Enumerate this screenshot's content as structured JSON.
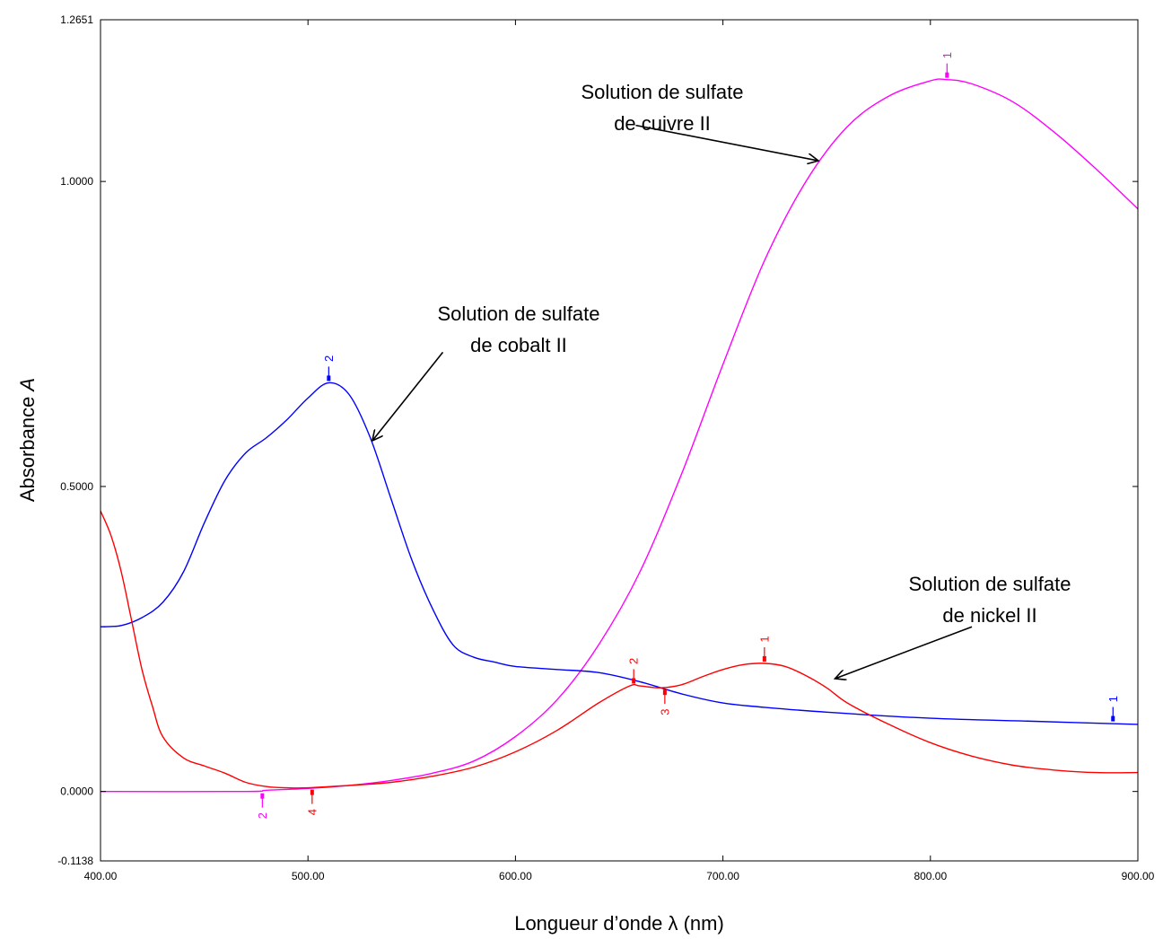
{
  "chart_data": {
    "type": "line",
    "xlabel": "Longueur d’onde λ (nm)",
    "ylabel_prefix": "Absorbance ",
    "ylabel_var": "A",
    "xlim": [
      400,
      900
    ],
    "ylim": [
      -0.1138,
      1.2651
    ],
    "x_ticks": [
      400,
      500,
      600,
      700,
      800,
      900
    ],
    "x_tick_labels": [
      "400.00",
      "500.00",
      "600.00",
      "700.00",
      "800.00",
      "900.00"
    ],
    "y_ticks": [
      -0.1138,
      0,
      0.5,
      1.0,
      1.2651
    ],
    "y_tick_labels": [
      "-0.1138",
      "0.0000",
      "0.5000",
      "1.0000",
      "1.2651"
    ],
    "grid": false,
    "series": [
      {
        "color": "#ff00ff",
        "x": [
          400,
          470,
          480,
          500,
          520,
          540,
          560,
          580,
          600,
          620,
          640,
          660,
          680,
          700,
          720,
          740,
          760,
          780,
          800,
          808,
          820,
          840,
          860,
          880,
          900
        ],
        "y": [
          0.0,
          0.0,
          0.002,
          0.005,
          0.01,
          0.018,
          0.03,
          0.05,
          0.09,
          0.15,
          0.24,
          0.36,
          0.52,
          0.7,
          0.87,
          1.0,
          1.09,
          1.14,
          1.165,
          1.167,
          1.16,
          1.13,
          1.08,
          1.02,
          0.955
        ],
        "markers": [
          {
            "label": "1",
            "x": 808,
            "y": 1.167,
            "side": "above"
          },
          {
            "label": "2",
            "x": 478,
            "y": 0.0,
            "side": "below"
          }
        ]
      },
      {
        "color": "#0000ff",
        "x": [
          400,
          410,
          420,
          430,
          440,
          450,
          460,
          470,
          480,
          490,
          500,
          510,
          520,
          530,
          540,
          550,
          560,
          570,
          580,
          590,
          600,
          620,
          640,
          660,
          680,
          700,
          720,
          750,
          800,
          850,
          900
        ],
        "y": [
          0.27,
          0.272,
          0.285,
          0.31,
          0.36,
          0.44,
          0.51,
          0.555,
          0.58,
          0.61,
          0.645,
          0.67,
          0.65,
          0.58,
          0.48,
          0.38,
          0.3,
          0.24,
          0.22,
          0.212,
          0.205,
          0.2,
          0.195,
          0.18,
          0.16,
          0.145,
          0.138,
          0.13,
          0.12,
          0.115,
          0.11
        ],
        "markers": [
          {
            "label": "2",
            "x": 510,
            "y": 0.67,
            "side": "above"
          },
          {
            "label": "1",
            "x": 888,
            "y": 0.112,
            "side": "above"
          }
        ]
      },
      {
        "color": "#ff0000",
        "x": [
          400,
          405,
          410,
          415,
          420,
          425,
          430,
          440,
          450,
          460,
          470,
          480,
          490,
          500,
          520,
          540,
          560,
          580,
          600,
          620,
          640,
          655,
          660,
          670,
          680,
          690,
          700,
          710,
          720,
          730,
          740,
          750,
          760,
          780,
          800,
          820,
          840,
          860,
          880,
          900
        ],
        "y": [
          0.46,
          0.42,
          0.36,
          0.28,
          0.2,
          0.14,
          0.09,
          0.055,
          0.042,
          0.03,
          0.015,
          0.008,
          0.006,
          0.006,
          0.01,
          0.015,
          0.025,
          0.04,
          0.065,
          0.1,
          0.145,
          0.173,
          0.173,
          0.17,
          0.175,
          0.188,
          0.2,
          0.208,
          0.21,
          0.205,
          0.19,
          0.17,
          0.145,
          0.11,
          0.08,
          0.058,
          0.043,
          0.035,
          0.031,
          0.031
        ],
        "markers": [
          {
            "label": "1",
            "x": 720,
            "y": 0.21,
            "side": "above"
          },
          {
            "label": "2",
            "x": 657,
            "y": 0.174,
            "side": "above"
          },
          {
            "label": "3",
            "x": 672,
            "y": 0.17,
            "side": "below"
          },
          {
            "label": "4",
            "x": 502,
            "y": 0.006,
            "side": "below"
          }
        ]
      }
    ],
    "annotations": [
      {
        "lines": [
          "Solution de sulfate",
          "de cuivre II"
        ],
        "arrow_from": [
          658,
          1.092
        ],
        "arrow_to": [
          746,
          1.034
        ]
      },
      {
        "lines": [
          "Solution de sulfate",
          "de cobalt II"
        ],
        "arrow_from": [
          565,
          0.72
        ],
        "arrow_to": [
          531,
          0.575
        ]
      },
      {
        "lines": [
          "Solution de sulfate",
          "de nickel II"
        ],
        "arrow_from": [
          820,
          0.27
        ],
        "arrow_to": [
          754,
          0.185
        ]
      }
    ]
  }
}
